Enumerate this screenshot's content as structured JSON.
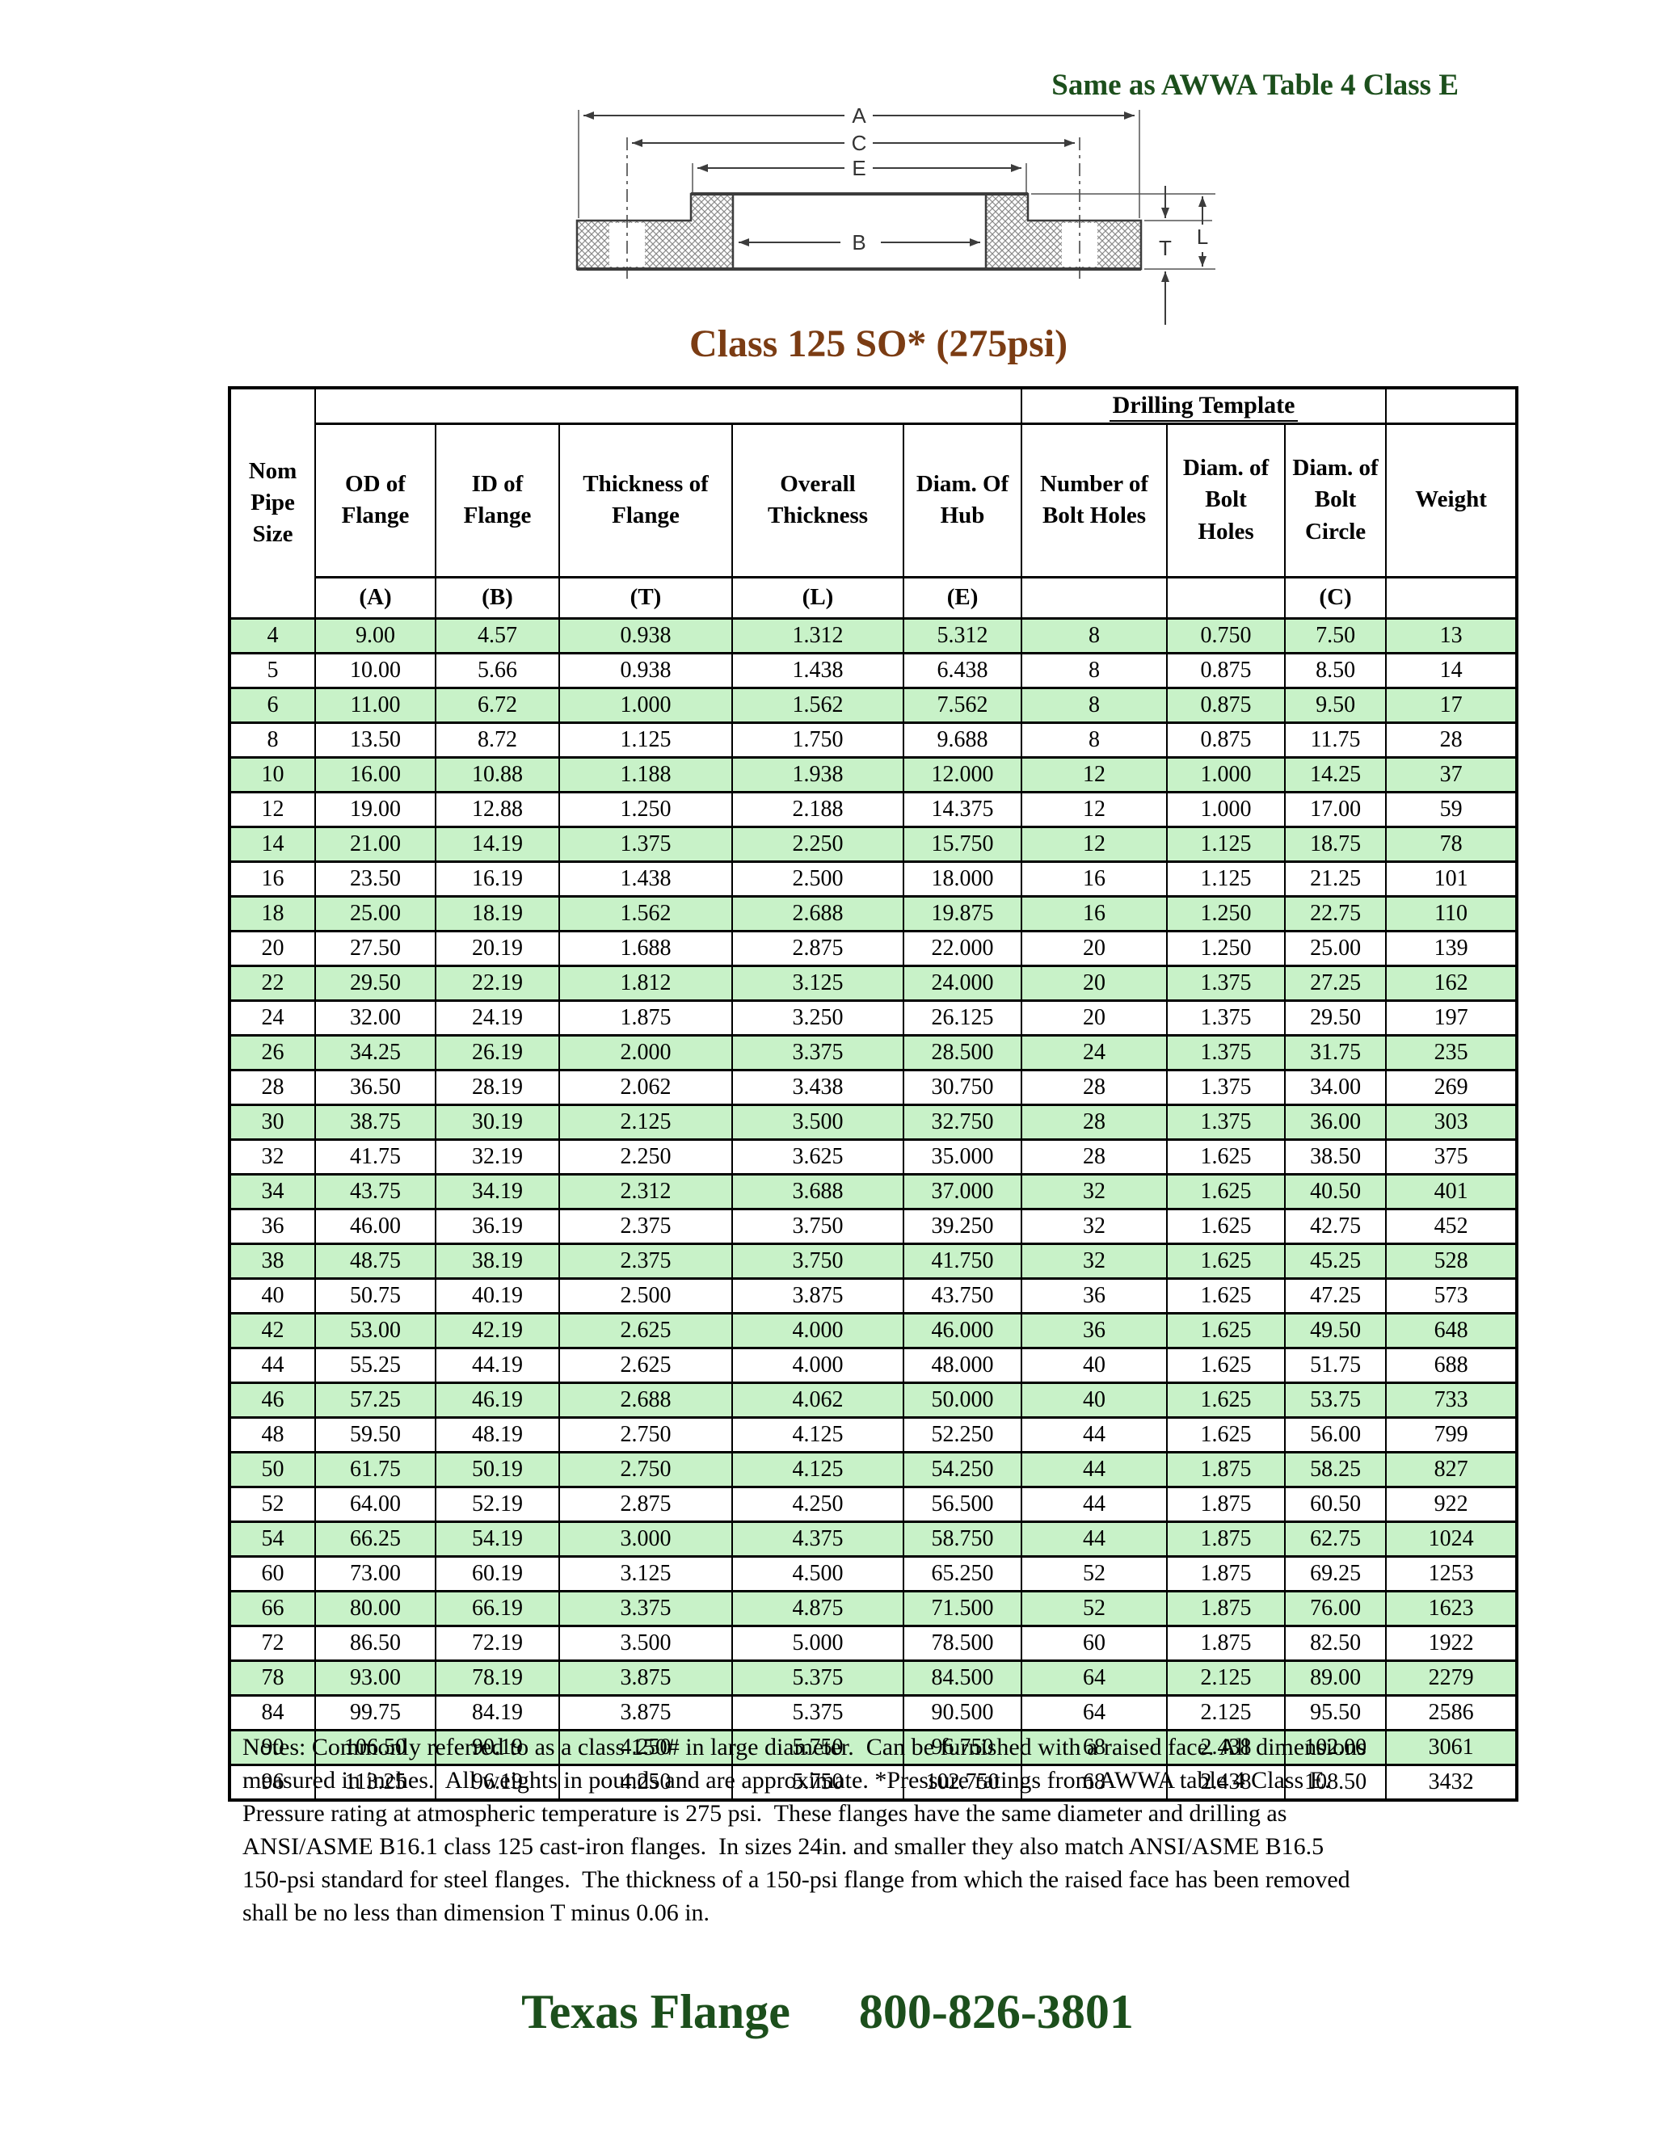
{
  "page": {
    "heading_right": "Same as AWWA Table 4 Class E",
    "title": "Class 125 SO* (275psi)",
    "notes": "Notes: Commonly referred to as a class 150# in large diameter.  Can be furnished with a raised face. All dimensions measured in inches.  All weights in pounds and are approximate. *Pressure ratings from AWWA table 4 Class E.  Pressure rating at atmospheric temperature is 275 psi.  These flanges have the same diameter and drilling as ANSI/ASME B16.1 class 125 cast-iron flanges.  In sizes 24in. and smaller they also match ANSI/ASME B16.5 150-psi standard for steel flanges.  The thickness of a 150-psi flange from which the raised face has been removed shall be no less than dimension T minus 0.06 in.",
    "footer": {
      "brand": "Texas Flange",
      "phone": "800-826-3801"
    },
    "colors": {
      "heading_green": "#1c4f1c",
      "title_brown": "#7b3c13",
      "row_band_green": "#c8f2c8",
      "table_border": "#000000"
    }
  },
  "diagram": {
    "labels": [
      "A",
      "C",
      "E",
      "B",
      "T",
      "L"
    ]
  },
  "table": {
    "drilling_template_label": "Drilling Template",
    "columns": [
      {
        "label": "Nom Pipe Size",
        "letter": ""
      },
      {
        "label": "OD of Flange",
        "letter": "(A)"
      },
      {
        "label": "ID of Flange",
        "letter": "(B)"
      },
      {
        "label": "Thickness of Flange",
        "letter": "(T)"
      },
      {
        "label": "Overall Thickness",
        "letter": "(L)"
      },
      {
        "label": "Diam. Of Hub",
        "letter": "(E)"
      },
      {
        "label": "Number of Bolt Holes",
        "letter": ""
      },
      {
        "label": "Diam. of Bolt Holes",
        "letter": ""
      },
      {
        "label": "Diam. of Bolt Circle",
        "letter": "(C)"
      },
      {
        "label": "Weight",
        "letter": ""
      }
    ],
    "rows": [
      [
        "4",
        "9.00",
        "4.57",
        "0.938",
        "1.312",
        "5.312",
        "8",
        "0.750",
        "7.50",
        "13"
      ],
      [
        "5",
        "10.00",
        "5.66",
        "0.938",
        "1.438",
        "6.438",
        "8",
        "0.875",
        "8.50",
        "14"
      ],
      [
        "6",
        "11.00",
        "6.72",
        "1.000",
        "1.562",
        "7.562",
        "8",
        "0.875",
        "9.50",
        "17"
      ],
      [
        "8",
        "13.50",
        "8.72",
        "1.125",
        "1.750",
        "9.688",
        "8",
        "0.875",
        "11.75",
        "28"
      ],
      [
        "10",
        "16.00",
        "10.88",
        "1.188",
        "1.938",
        "12.000",
        "12",
        "1.000",
        "14.25",
        "37"
      ],
      [
        "12",
        "19.00",
        "12.88",
        "1.250",
        "2.188",
        "14.375",
        "12",
        "1.000",
        "17.00",
        "59"
      ],
      [
        "14",
        "21.00",
        "14.19",
        "1.375",
        "2.250",
        "15.750",
        "12",
        "1.125",
        "18.75",
        "78"
      ],
      [
        "16",
        "23.50",
        "16.19",
        "1.438",
        "2.500",
        "18.000",
        "16",
        "1.125",
        "21.25",
        "101"
      ],
      [
        "18",
        "25.00",
        "18.19",
        "1.562",
        "2.688",
        "19.875",
        "16",
        "1.250",
        "22.75",
        "110"
      ],
      [
        "20",
        "27.50",
        "20.19",
        "1.688",
        "2.875",
        "22.000",
        "20",
        "1.250",
        "25.00",
        "139"
      ],
      [
        "22",
        "29.50",
        "22.19",
        "1.812",
        "3.125",
        "24.000",
        "20",
        "1.375",
        "27.25",
        "162"
      ],
      [
        "24",
        "32.00",
        "24.19",
        "1.875",
        "3.250",
        "26.125",
        "20",
        "1.375",
        "29.50",
        "197"
      ],
      [
        "26",
        "34.25",
        "26.19",
        "2.000",
        "3.375",
        "28.500",
        "24",
        "1.375",
        "31.75",
        "235"
      ],
      [
        "28",
        "36.50",
        "28.19",
        "2.062",
        "3.438",
        "30.750",
        "28",
        "1.375",
        "34.00",
        "269"
      ],
      [
        "30",
        "38.75",
        "30.19",
        "2.125",
        "3.500",
        "32.750",
        "28",
        "1.375",
        "36.00",
        "303"
      ],
      [
        "32",
        "41.75",
        "32.19",
        "2.250",
        "3.625",
        "35.000",
        "28",
        "1.625",
        "38.50",
        "375"
      ],
      [
        "34",
        "43.75",
        "34.19",
        "2.312",
        "3.688",
        "37.000",
        "32",
        "1.625",
        "40.50",
        "401"
      ],
      [
        "36",
        "46.00",
        "36.19",
        "2.375",
        "3.750",
        "39.250",
        "32",
        "1.625",
        "42.75",
        "452"
      ],
      [
        "38",
        "48.75",
        "38.19",
        "2.375",
        "3.750",
        "41.750",
        "32",
        "1.625",
        "45.25",
        "528"
      ],
      [
        "40",
        "50.75",
        "40.19",
        "2.500",
        "3.875",
        "43.750",
        "36",
        "1.625",
        "47.25",
        "573"
      ],
      [
        "42",
        "53.00",
        "42.19",
        "2.625",
        "4.000",
        "46.000",
        "36",
        "1.625",
        "49.50",
        "648"
      ],
      [
        "44",
        "55.25",
        "44.19",
        "2.625",
        "4.000",
        "48.000",
        "40",
        "1.625",
        "51.75",
        "688"
      ],
      [
        "46",
        "57.25",
        "46.19",
        "2.688",
        "4.062",
        "50.000",
        "40",
        "1.625",
        "53.75",
        "733"
      ],
      [
        "48",
        "59.50",
        "48.19",
        "2.750",
        "4.125",
        "52.250",
        "44",
        "1.625",
        "56.00",
        "799"
      ],
      [
        "50",
        "61.75",
        "50.19",
        "2.750",
        "4.125",
        "54.250",
        "44",
        "1.875",
        "58.25",
        "827"
      ],
      [
        "52",
        "64.00",
        "52.19",
        "2.875",
        "4.250",
        "56.500",
        "44",
        "1.875",
        "60.50",
        "922"
      ],
      [
        "54",
        "66.25",
        "54.19",
        "3.000",
        "4.375",
        "58.750",
        "44",
        "1.875",
        "62.75",
        "1024"
      ],
      [
        "60",
        "73.00",
        "60.19",
        "3.125",
        "4.500",
        "65.250",
        "52",
        "1.875",
        "69.25",
        "1253"
      ],
      [
        "66",
        "80.00",
        "66.19",
        "3.375",
        "4.875",
        "71.500",
        "52",
        "1.875",
        "76.00",
        "1623"
      ],
      [
        "72",
        "86.50",
        "72.19",
        "3.500",
        "5.000",
        "78.500",
        "60",
        "1.875",
        "82.50",
        "1922"
      ],
      [
        "78",
        "93.00",
        "78.19",
        "3.875",
        "5.375",
        "84.500",
        "64",
        "2.125",
        "89.00",
        "2279"
      ],
      [
        "84",
        "99.75",
        "84.19",
        "3.875",
        "5.375",
        "90.500",
        "64",
        "2.125",
        "95.50",
        "2586"
      ],
      [
        "90",
        "106.50",
        "90.19",
        "4.250",
        "5.750",
        "96.750",
        "68",
        "2.438",
        "102.00",
        "3061"
      ],
      [
        "96",
        "113.25",
        "96.19",
        "4.250",
        "5.750",
        "102.750",
        "68",
        "2.438",
        "108.50",
        "3432"
      ]
    ]
  }
}
